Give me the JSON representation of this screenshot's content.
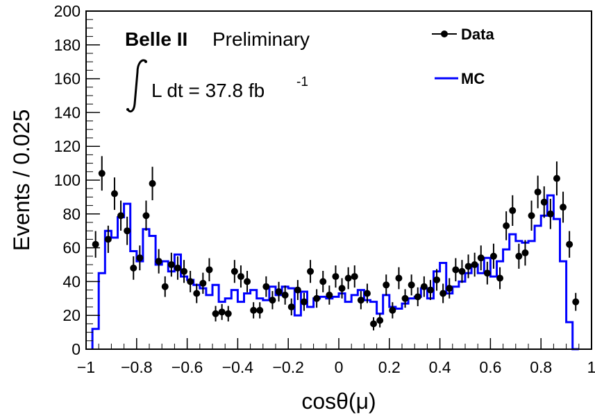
{
  "chart_data": {
    "type": "scatter",
    "xlabel": "cosθ(μ)",
    "ylabel": "Events / 0.025",
    "xlim": [
      -1,
      1
    ],
    "ylim": [
      0,
      200
    ],
    "x_ticks": [
      -1,
      -0.8,
      -0.6,
      -0.4,
      -0.2,
      0,
      0.2,
      0.4,
      0.6,
      0.8,
      1
    ],
    "x_tick_labels": [
      "−1",
      "−0.8",
      "−0.6",
      "−0.4",
      "−0.2",
      "0",
      "0.2",
      "0.4",
      "0.6",
      "0.8",
      "1"
    ],
    "y_ticks": [
      0,
      20,
      40,
      60,
      80,
      100,
      120,
      140,
      160,
      180,
      200
    ],
    "y_tick_labels": [
      "0",
      "20",
      "40",
      "60",
      "80",
      "100",
      "120",
      "140",
      "160",
      "180",
      "200"
    ],
    "annotation": {
      "experiment": "Belle II",
      "status": "Preliminary",
      "lumi_text": "L dt = 37.8 fb",
      "lumi_exp": "-1"
    },
    "legend": {
      "placement": "top-right",
      "entries": [
        "Data",
        "MC"
      ]
    },
    "colors": {
      "data": "#000000",
      "mc": "#0000ff"
    },
    "bin_width": 0.025,
    "mc": {
      "name": "MC",
      "x_edges_start": -0.975,
      "values": [
        12,
        45,
        70,
        66,
        78,
        86,
        58,
        52,
        71,
        67,
        50,
        52,
        46,
        56,
        43,
        41,
        38,
        36,
        32,
        38,
        28,
        30,
        35,
        28,
        33,
        35,
        30,
        29,
        37,
        32,
        37,
        36,
        20,
        34,
        25,
        30,
        31,
        30,
        31,
        33,
        28,
        32,
        35,
        29,
        28,
        21,
        32,
        25,
        24,
        27,
        30,
        31,
        36,
        30,
        46,
        51,
        33,
        37,
        40,
        45,
        50,
        45,
        54,
        43,
        52,
        59,
        68,
        64,
        63,
        64,
        73,
        79,
        91,
        77,
        52,
        16,
        0
      ]
    },
    "data": {
      "name": "Data",
      "x": [
        -0.9625,
        -0.9375,
        -0.9125,
        -0.8875,
        -0.8625,
        -0.8375,
        -0.8125,
        -0.7875,
        -0.7625,
        -0.7375,
        -0.7125,
        -0.6875,
        -0.6625,
        -0.6375,
        -0.6125,
        -0.5875,
        -0.5625,
        -0.5375,
        -0.5125,
        -0.4875,
        -0.4625,
        -0.4375,
        -0.4125,
        -0.3875,
        -0.3625,
        -0.3375,
        -0.3125,
        -0.2875,
        -0.2625,
        -0.2375,
        -0.2125,
        -0.1875,
        -0.1625,
        -0.1375,
        -0.1125,
        -0.0875,
        -0.0625,
        -0.0375,
        -0.0125,
        0.0125,
        0.0375,
        0.0625,
        0.0875,
        0.1125,
        0.1375,
        0.1625,
        0.1875,
        0.2125,
        0.2375,
        0.2625,
        0.2875,
        0.3125,
        0.3375,
        0.3625,
        0.3875,
        0.4125,
        0.4375,
        0.4625,
        0.4875,
        0.5125,
        0.5375,
        0.5625,
        0.5875,
        0.6125,
        0.6375,
        0.6625,
        0.6875,
        0.7125,
        0.7375,
        0.7625,
        0.7875,
        0.8125,
        0.8375,
        0.8625,
        0.8875,
        0.9125,
        0.9375
      ],
      "y": [
        62,
        104,
        65,
        92,
        79,
        70,
        48,
        54,
        79,
        98,
        52,
        37,
        50,
        48,
        46,
        40,
        33,
        39,
        47,
        21,
        22,
        21,
        46,
        43,
        40,
        23,
        23,
        37,
        29,
        34,
        32,
        25,
        35,
        28,
        46,
        30,
        40,
        32,
        43,
        36,
        42,
        43,
        29,
        33,
        15,
        17,
        38,
        23,
        42,
        30,
        38,
        31,
        37,
        35,
        41,
        33,
        36,
        47,
        46,
        49,
        50,
        54,
        45,
        55,
        42,
        73,
        82,
        55,
        57,
        79,
        93,
        87,
        80,
        101,
        84,
        62,
        28
      ]
    }
  }
}
